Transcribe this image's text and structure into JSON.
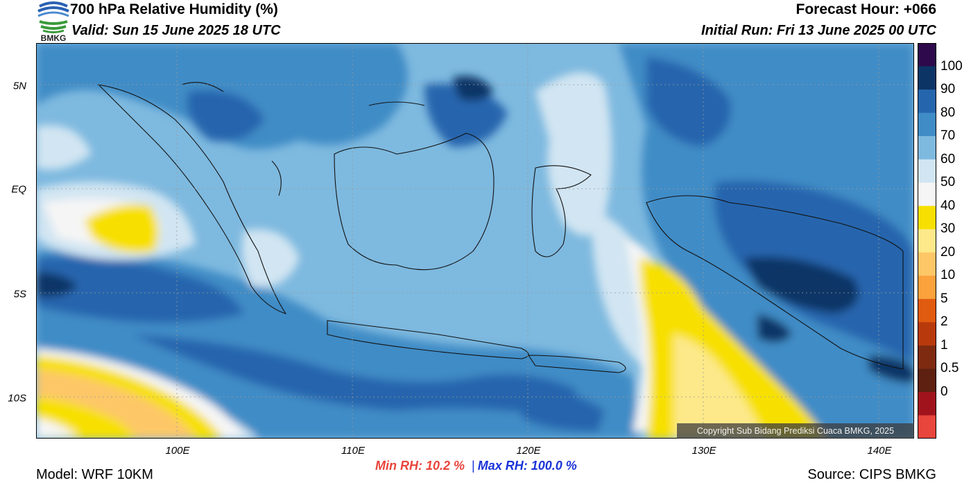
{
  "header": {
    "title": "700 hPa Relative Humidity (%)",
    "valid": "Valid: Sun 15 June 2025 18 UTC",
    "forecast_hour": "Forecast Hour: +066",
    "initial_run": "Initial Run: Fri 13 June 2025 00 UTC",
    "logo_text": "BMKG"
  },
  "axes": {
    "lat_labels": [
      {
        "text": "5N",
        "lat": 5
      },
      {
        "text": "EQ",
        "lat": 0
      },
      {
        "text": "5S",
        "lat": -5
      },
      {
        "text": "10S",
        "lat": -10
      }
    ],
    "lon_labels": [
      {
        "text": "100E",
        "lon": 100
      },
      {
        "text": "110E",
        "lon": 110
      },
      {
        "text": "120E",
        "lon": 120
      },
      {
        "text": "130E",
        "lon": 130
      },
      {
        "text": "140E",
        "lon": 140
      }
    ],
    "lon_range": [
      92,
      142
    ],
    "lat_range": [
      -12,
      7
    ]
  },
  "colorbar": {
    "labels": [
      "100",
      "90",
      "80",
      "70",
      "60",
      "50",
      "40",
      "30",
      "20",
      "10",
      "5",
      "2",
      "1",
      "0.5",
      "0"
    ],
    "colors": [
      "#2e0a4c",
      "#0c3566",
      "#2565ad",
      "#3f8cc6",
      "#7eb9df",
      "#d1e5f2",
      "#f5f5f5",
      "#f7e000",
      "#fde98a",
      "#fdc767",
      "#fba23c",
      "#e05a10",
      "#b83a0c",
      "#7e2a10",
      "#5e2010",
      "#a0131c",
      "#e8453c"
    ]
  },
  "stats": {
    "min_rh": "Min RH:  10.2 %",
    "separator": "|",
    "max_rh": "Max RH: 100.0 %"
  },
  "footer": {
    "model": "Model: WRF 10KM",
    "source": "Source: CIPS BMKG",
    "copyright": "Copyright Sub Bidang Prediksi Cuaca BMKG, 2025"
  }
}
